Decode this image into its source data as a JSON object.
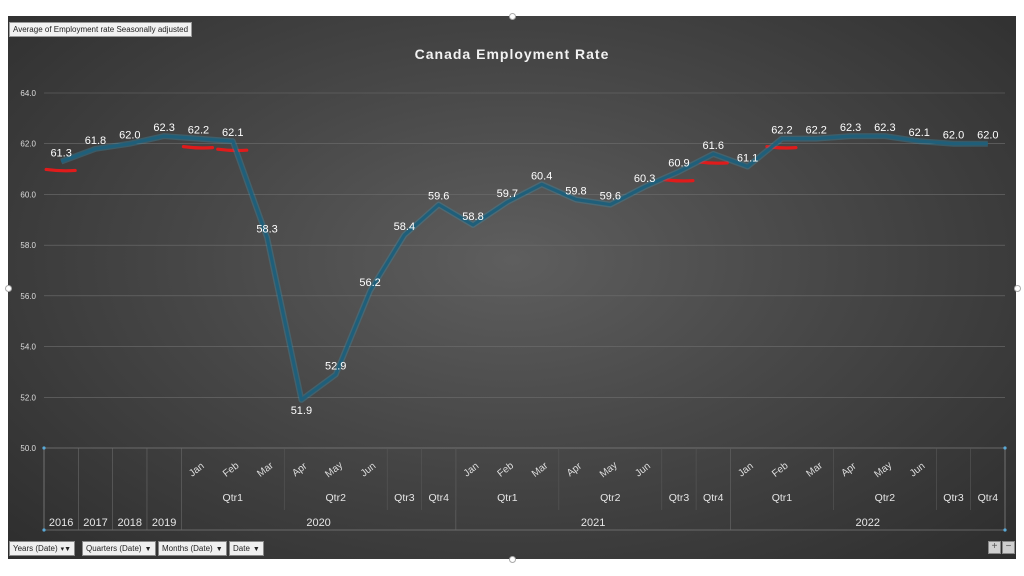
{
  "field_label": "Average of Employment rate Seasonally adjusted",
  "axis_buttons": [
    {
      "label": "Years (Date)",
      "icon": "filter-dropdown-icon"
    },
    {
      "label": "Quarters (Date)",
      "icon": "dropdown-icon"
    },
    {
      "label": "Months (Date)",
      "icon": "dropdown-icon"
    },
    {
      "label": "Date",
      "icon": "dropdown-icon"
    }
  ],
  "zoom": {
    "plus": "+",
    "minus": "−"
  },
  "colors": {
    "line": "#1f5f7a",
    "label": "#ffffff",
    "grid": "#6e6e6e",
    "highlight": "#e01b1b"
  },
  "chart_data": {
    "type": "line",
    "title": "Canada Employment Rate",
    "xlabel": "",
    "ylabel": "",
    "ylim": [
      50.0,
      64.0
    ],
    "yticks": [
      "50.0",
      "52.0",
      "54.0",
      "56.0",
      "58.0",
      "60.0",
      "62.0",
      "64.0"
    ],
    "grid": true,
    "series": [
      {
        "values": [
          61.3,
          61.8,
          62.0,
          62.3,
          62.2,
          62.1,
          58.3,
          51.9,
          52.9,
          56.2,
          58.4,
          59.6,
          58.8,
          59.7,
          60.4,
          59.8,
          59.6,
          60.3,
          60.9,
          61.6,
          61.1,
          62.2,
          62.2,
          62.3,
          62.3,
          62.1,
          62.0,
          62.0
        ],
        "labels": [
          "61.3",
          "61.8",
          "62.0",
          "62.3",
          "62.2",
          "62.1",
          "58.3",
          "51.9",
          "52.9",
          "56.2",
          "58.4",
          "59.6",
          "58.8",
          "59.7",
          "60.4",
          "59.8",
          "59.6",
          "60.3",
          "60.9",
          "61.6",
          "61.1",
          "62.2",
          "62.2",
          "62.3",
          "62.3",
          "62.1",
          "62.0",
          "62.0"
        ]
      }
    ],
    "categories": {
      "months": [
        "",
        "",
        "",
        "",
        "Jan",
        "Feb",
        "Mar",
        "Apr",
        "May",
        "Jun",
        "",
        "",
        "Jan",
        "Feb",
        "Mar",
        "Apr",
        "May",
        "Jun",
        "",
        "",
        "Jan",
        "Feb",
        "Mar",
        "Apr",
        "May",
        "Jun",
        "",
        ""
      ],
      "quarters": [
        {
          "label": "Qtr1",
          "span": [
            4,
            6
          ]
        },
        {
          "label": "Qtr2",
          "span": [
            7,
            9
          ]
        },
        {
          "label": "Qtr3",
          "span": [
            10,
            10
          ]
        },
        {
          "label": "Qtr4",
          "span": [
            11,
            11
          ]
        },
        {
          "label": "Qtr1",
          "span": [
            12,
            14
          ]
        },
        {
          "label": "Qtr2",
          "span": [
            15,
            17
          ]
        },
        {
          "label": "Qtr3",
          "span": [
            18,
            18
          ]
        },
        {
          "label": "Qtr4",
          "span": [
            19,
            19
          ]
        },
        {
          "label": "Qtr1",
          "span": [
            20,
            22
          ]
        },
        {
          "label": "Qtr2",
          "span": [
            23,
            25
          ]
        },
        {
          "label": "Qtr3",
          "span": [
            26,
            26
          ]
        },
        {
          "label": "Qtr4",
          "span": [
            27,
            27
          ]
        }
      ],
      "years": [
        {
          "label": "2016",
          "span": [
            0,
            0
          ]
        },
        {
          "label": "2017",
          "span": [
            1,
            1
          ]
        },
        {
          "label": "2018",
          "span": [
            2,
            2
          ]
        },
        {
          "label": "2019",
          "span": [
            3,
            3
          ]
        },
        {
          "label": "2020",
          "span": [
            4,
            11
          ]
        },
        {
          "label": "2021",
          "span": [
            12,
            19
          ]
        },
        {
          "label": "2022",
          "span": [
            20,
            27
          ]
        }
      ]
    },
    "highlights": [
      0,
      4,
      5,
      18,
      19,
      21
    ]
  }
}
